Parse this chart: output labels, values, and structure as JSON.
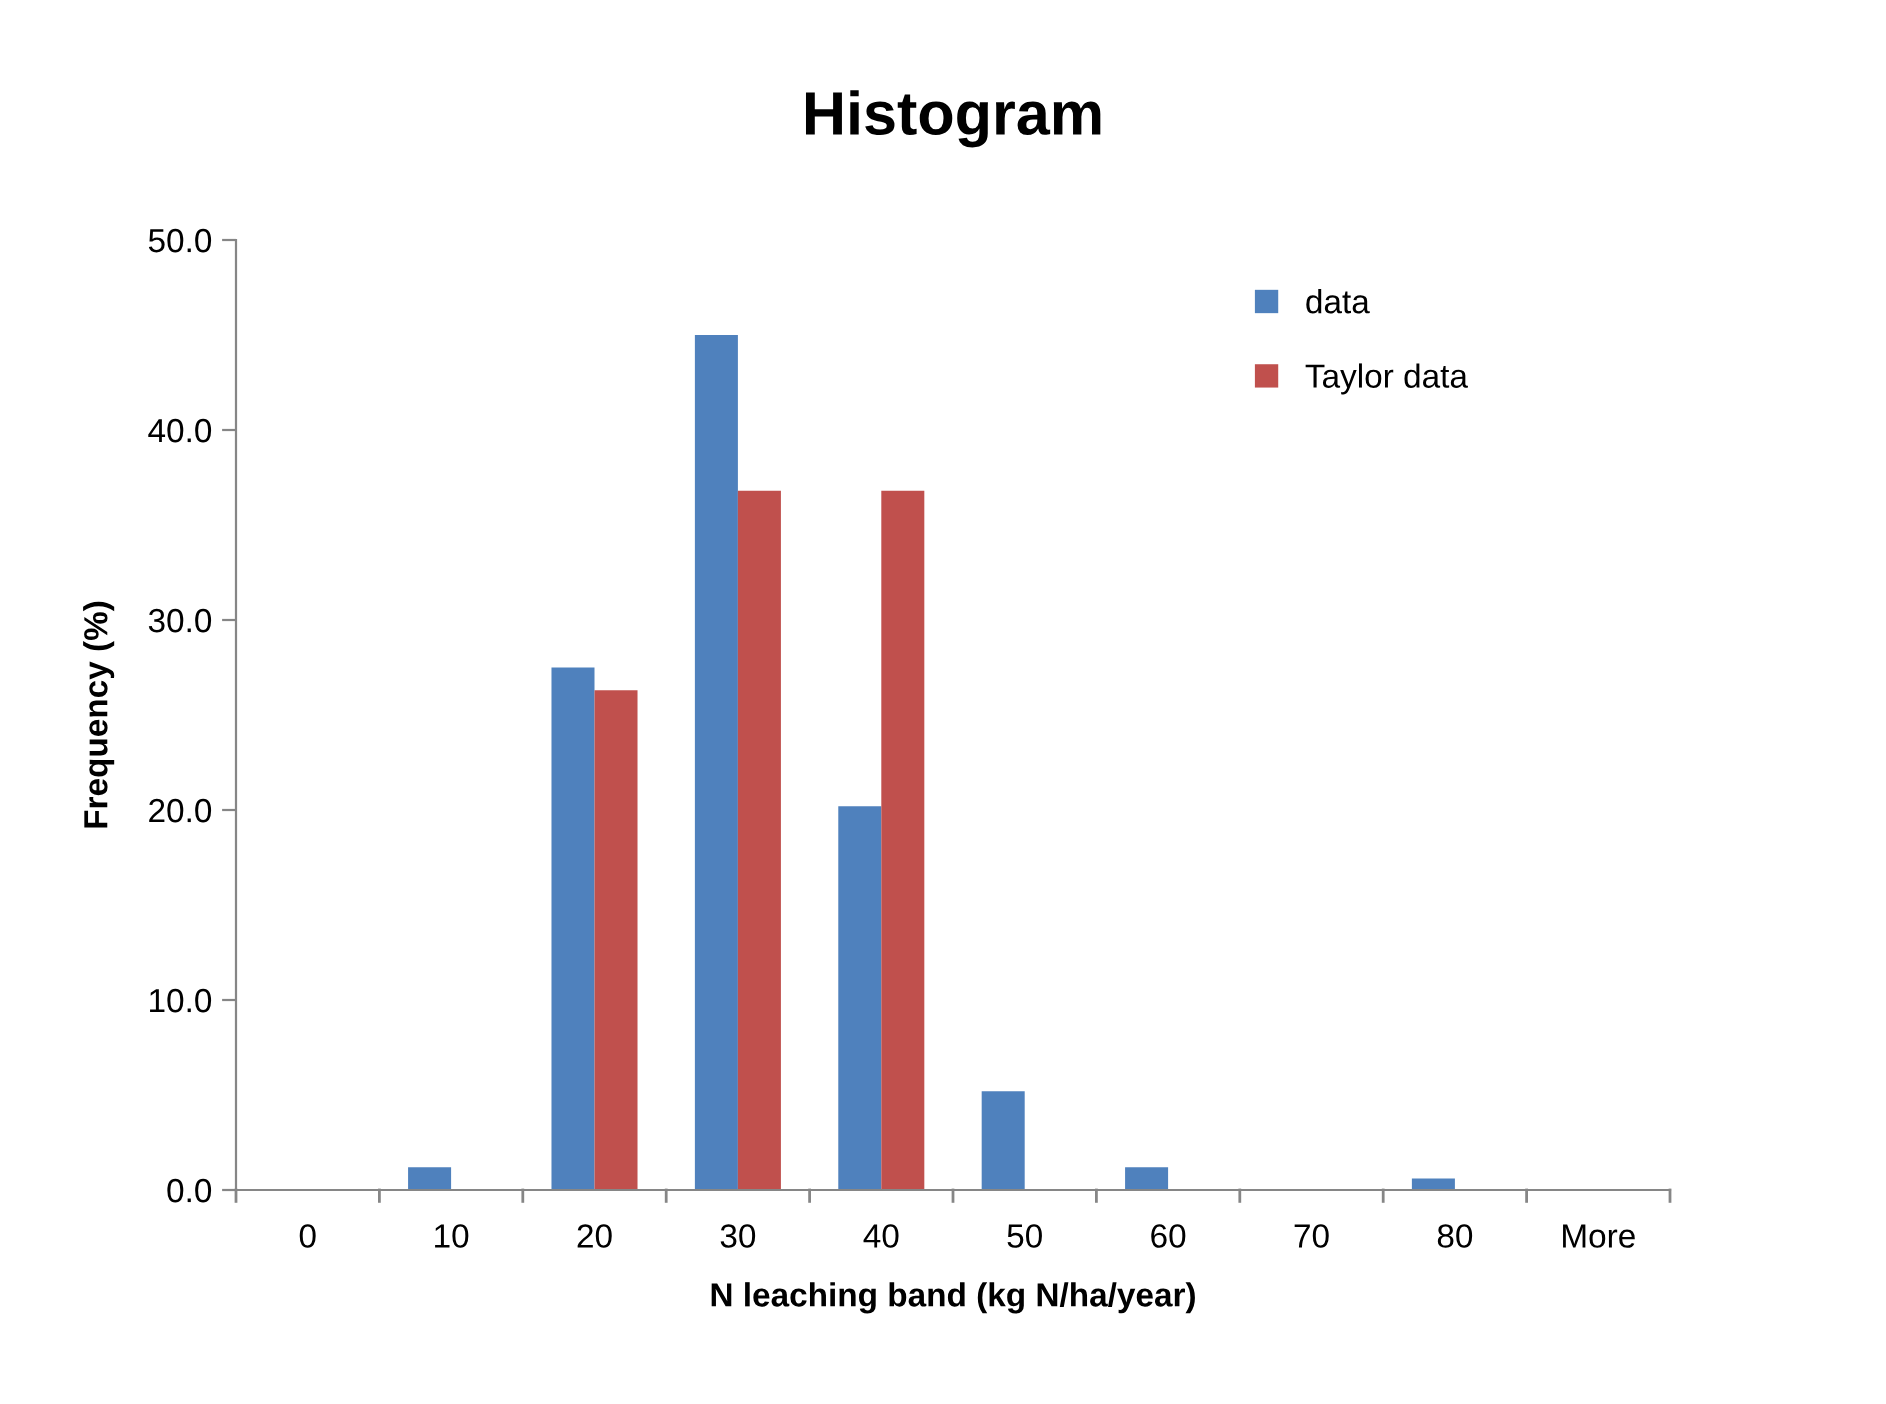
{
  "chart_data": {
    "type": "bar",
    "title": "Histogram",
    "xlabel": "N leaching band (kg N/ha/year)",
    "ylabel": "Frequency (%)",
    "categories": [
      "0",
      "10",
      "20",
      "30",
      "40",
      "50",
      "60",
      "70",
      "80",
      "More"
    ],
    "series": [
      {
        "name": "data",
        "color": "#4f81bd",
        "values": [
          0,
          1.2,
          27.5,
          45.0,
          20.2,
          5.2,
          1.2,
          0,
          0.6,
          0
        ]
      },
      {
        "name": "Taylor data",
        "color": "#c0504d",
        "values": [
          0,
          0,
          26.3,
          36.8,
          36.8,
          0,
          0,
          0,
          0,
          0
        ]
      }
    ],
    "ylim": [
      0,
      50
    ],
    "yticks": [
      {
        "value": 0,
        "label": "0.0"
      },
      {
        "value": 10,
        "label": "10.0"
      },
      {
        "value": 20,
        "label": "20.0"
      },
      {
        "value": 30,
        "label": "30.0"
      },
      {
        "value": 40,
        "label": "40.0"
      },
      {
        "value": 50,
        "label": "50.0"
      }
    ],
    "grid": false,
    "legend": "top right"
  }
}
